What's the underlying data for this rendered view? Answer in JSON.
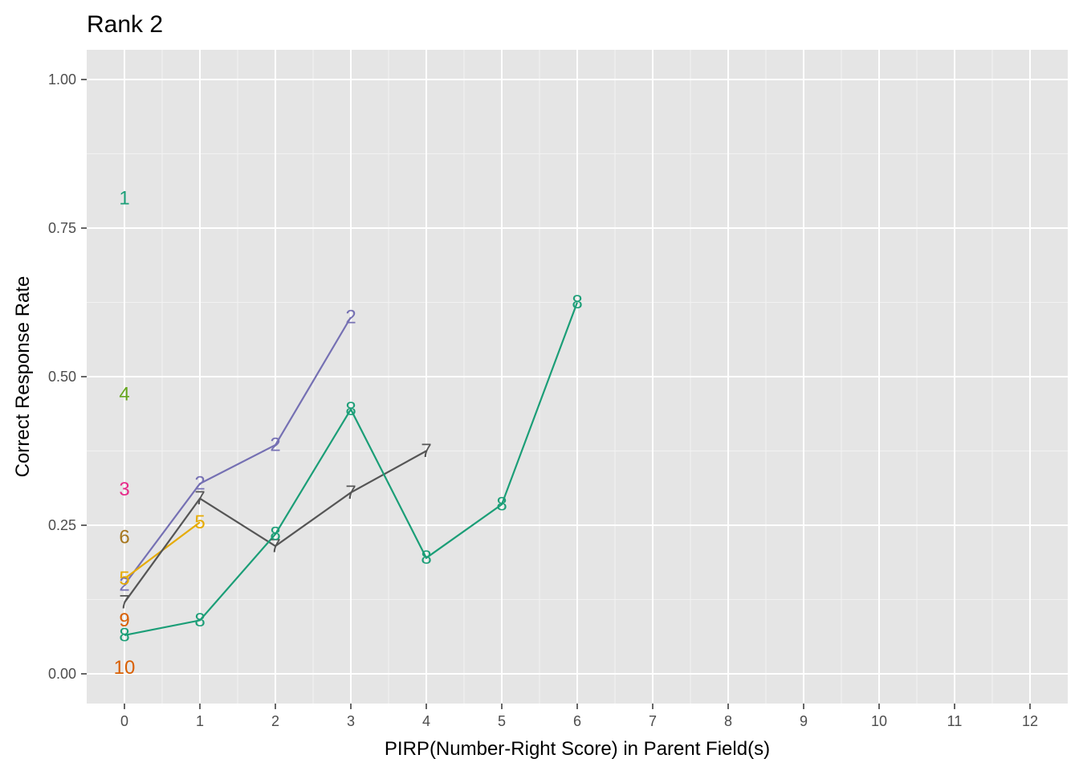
{
  "chart_data": {
    "type": "line",
    "title": "Rank 2",
    "xlabel": "PIRP(Number-Right Score) in Parent Field(s)",
    "ylabel": "Correct Response Rate",
    "xlim": [
      -0.5,
      12.5
    ],
    "ylim": [
      -0.05,
      1.05
    ],
    "x_ticks": [
      0,
      1,
      2,
      3,
      4,
      5,
      6,
      7,
      8,
      9,
      10,
      11,
      12
    ],
    "x_tick_labels": [
      "0",
      "1",
      "2",
      "3",
      "4",
      "5",
      "6",
      "7",
      "8",
      "9",
      "10",
      "11",
      "12"
    ],
    "y_ticks": [
      0,
      0.25,
      0.5,
      0.75,
      1.0
    ],
    "y_tick_labels": [
      "0.00",
      "0.25",
      "0.50",
      "0.75",
      "1.00"
    ],
    "grid": true,
    "background": "#e5e5e5",
    "series": [
      {
        "label": "1",
        "color": "#1b9e77",
        "x": [
          0
        ],
        "y": [
          0.8
        ]
      },
      {
        "label": "2",
        "color": "#7570b3",
        "x": [
          0,
          1,
          2,
          3
        ],
        "y": [
          0.15,
          0.32,
          0.385,
          0.6
        ]
      },
      {
        "label": "3",
        "color": "#e7298a",
        "x": [
          0
        ],
        "y": [
          0.31
        ]
      },
      {
        "label": "4",
        "color": "#66a61e",
        "x": [
          0
        ],
        "y": [
          0.47
        ]
      },
      {
        "label": "5",
        "color": "#e6ab02",
        "x": [
          0,
          1
        ],
        "y": [
          0.16,
          0.255
        ]
      },
      {
        "label": "6",
        "color": "#a6761d",
        "x": [
          0
        ],
        "y": [
          0.23
        ]
      },
      {
        "label": "7",
        "color": "#555555",
        "x": [
          0,
          1,
          2,
          3,
          4
        ],
        "y": [
          0.12,
          0.295,
          0.215,
          0.305,
          0.375
        ]
      },
      {
        "label": "8",
        "color": "#1b9e77",
        "x": [
          0,
          1,
          2,
          3,
          4,
          5,
          6
        ],
        "y": [
          0.065,
          0.09,
          0.235,
          0.445,
          0.195,
          0.285,
          0.625
        ]
      },
      {
        "label": "9",
        "color": "#d95f02",
        "x": [
          0
        ],
        "y": [
          0.09
        ]
      },
      {
        "label": "10",
        "color": "#d95f02",
        "x": [
          0
        ],
        "y": [
          0.01
        ]
      }
    ]
  }
}
